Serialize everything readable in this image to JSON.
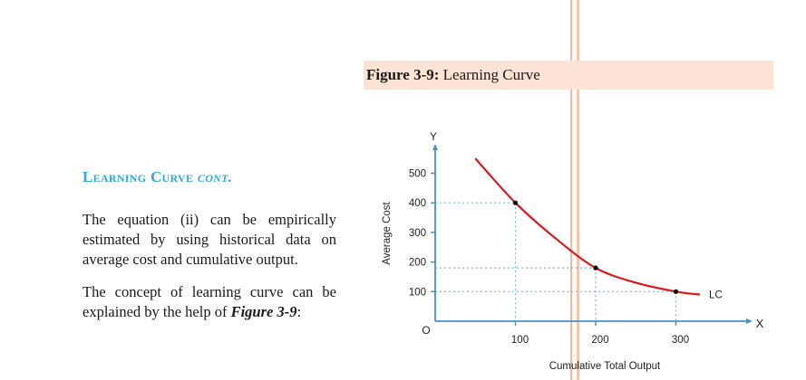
{
  "document": {
    "section_title": {
      "main": "Learning Curve",
      "suffix": "cont."
    },
    "paragraphs": [
      "The equation (ii) can be empirically estimated by using historical data on average cost and cumulative output.",
      {
        "before": "The concept of learning curve can be explained by the help of ",
        "emphasis": "Figure 3-9",
        "after": ":"
      }
    ],
    "figure_caption": {
      "label": "Figure 3-9:",
      "title": "Learning Curve"
    }
  },
  "chart_data": {
    "type": "line",
    "title": "Learning Curve",
    "xlabel": "Cumulative Total Output",
    "ylabel": "Average Cost",
    "x_axis_symbol": "X",
    "y_axis_symbol": "Y",
    "origin_label": "O",
    "x_ticks": [
      100,
      200,
      300
    ],
    "y_ticks": [
      100,
      200,
      300,
      400,
      500
    ],
    "xlim": [
      0,
      380
    ],
    "ylim": [
      0,
      580
    ],
    "grid": false,
    "series": [
      {
        "name": "LC",
        "color": "#d9191c",
        "curve": [
          [
            50,
            550
          ],
          [
            100,
            400
          ],
          [
            150,
            280
          ],
          [
            200,
            180
          ],
          [
            250,
            130
          ],
          [
            300,
            100
          ],
          [
            330,
            90
          ]
        ],
        "marked_points": [
          [
            100,
            400
          ],
          [
            200,
            180
          ],
          [
            300,
            100
          ]
        ]
      }
    ],
    "guide_lines": [
      {
        "x": 100,
        "y": 400
      },
      {
        "x": 200,
        "y": 180
      },
      {
        "x": 300,
        "y": 100
      }
    ],
    "axis_color": "#4a90c4",
    "guide_color": "#7fb8c8"
  }
}
